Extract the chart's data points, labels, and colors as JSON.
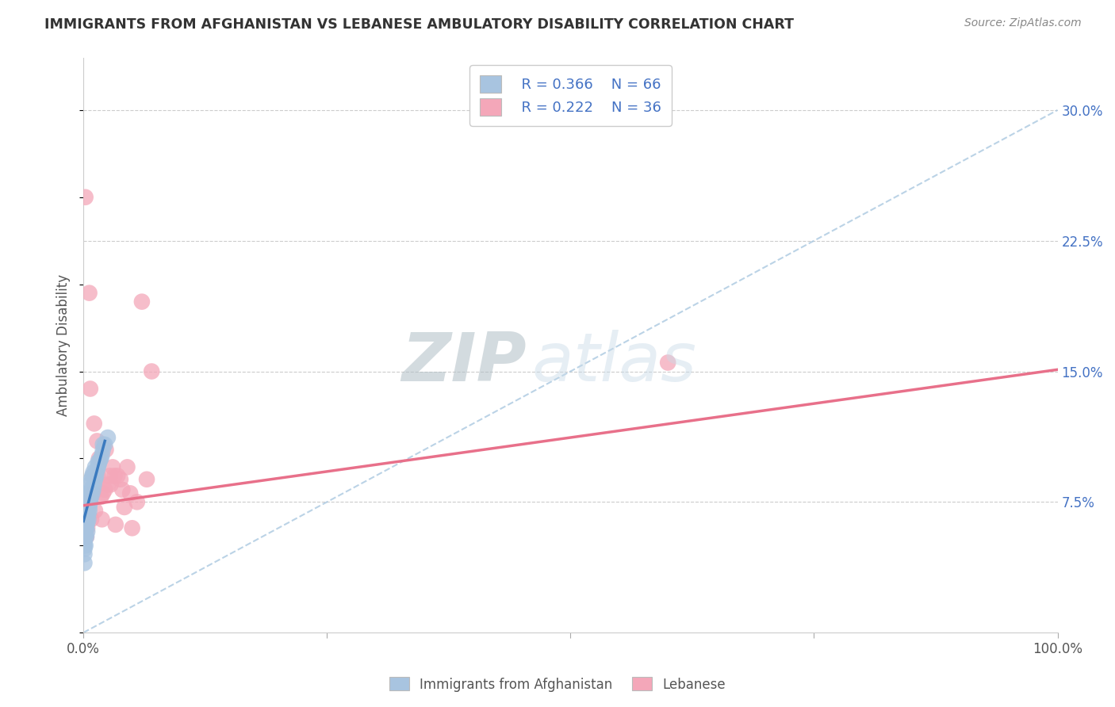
{
  "title": "IMMIGRANTS FROM AFGHANISTAN VS LEBANESE AMBULATORY DISABILITY CORRELATION CHART",
  "source": "Source: ZipAtlas.com",
  "ylabel": "Ambulatory Disability",
  "yticks": [
    0.075,
    0.15,
    0.225,
    0.3
  ],
  "ytick_labels": [
    "7.5%",
    "15.0%",
    "22.5%",
    "30.0%"
  ],
  "xlim": [
    0.0,
    1.0
  ],
  "ylim": [
    0.0,
    0.33
  ],
  "color_afg": "#a8c4e0",
  "color_leb": "#f4a7b9",
  "line_color_afg": "#3a7abf",
  "line_color_leb": "#e8708a",
  "line_color_diag": "#aac8e0",
  "watermark_zip": "ZIP",
  "watermark_atlas": "atlas",
  "legend_label1": "Immigrants from Afghanistan",
  "legend_label2": "Lebanese",
  "afg_x": [
    0.001,
    0.001,
    0.001,
    0.001,
    0.001,
    0.001,
    0.001,
    0.001,
    0.001,
    0.002,
    0.002,
    0.002,
    0.002,
    0.002,
    0.002,
    0.003,
    0.003,
    0.003,
    0.003,
    0.003,
    0.004,
    0.004,
    0.004,
    0.004,
    0.005,
    0.005,
    0.005,
    0.006,
    0.006,
    0.006,
    0.007,
    0.007,
    0.008,
    0.008,
    0.009,
    0.009,
    0.01,
    0.01,
    0.011,
    0.012,
    0.013,
    0.014,
    0.015,
    0.016,
    0.017,
    0.018,
    0.019,
    0.02,
    0.022,
    0.025,
    0.001,
    0.001,
    0.001,
    0.001,
    0.002,
    0.002,
    0.003,
    0.003,
    0.004,
    0.005,
    0.006,
    0.007,
    0.01,
    0.012,
    0.015,
    0.02
  ],
  "afg_y": [
    0.04,
    0.05,
    0.055,
    0.058,
    0.06,
    0.062,
    0.065,
    0.068,
    0.07,
    0.055,
    0.06,
    0.063,
    0.067,
    0.07,
    0.075,
    0.06,
    0.065,
    0.068,
    0.072,
    0.078,
    0.063,
    0.068,
    0.073,
    0.08,
    0.068,
    0.073,
    0.08,
    0.072,
    0.078,
    0.085,
    0.075,
    0.082,
    0.078,
    0.088,
    0.08,
    0.09,
    0.082,
    0.092,
    0.085,
    0.088,
    0.09,
    0.093,
    0.095,
    0.097,
    0.099,
    0.1,
    0.102,
    0.105,
    0.108,
    0.112,
    0.045,
    0.048,
    0.052,
    0.057,
    0.05,
    0.058,
    0.055,
    0.062,
    0.058,
    0.065,
    0.07,
    0.075,
    0.09,
    0.095,
    0.098,
    0.108
  ],
  "leb_x": [
    0.005,
    0.01,
    0.015,
    0.02,
    0.025,
    0.03,
    0.035,
    0.04,
    0.05,
    0.06,
    0.008,
    0.012,
    0.018,
    0.022,
    0.028,
    0.032,
    0.038,
    0.045,
    0.055,
    0.065,
    0.007,
    0.011,
    0.016,
    0.023,
    0.027,
    0.033,
    0.042,
    0.048,
    0.6,
    0.07,
    0.006,
    0.014,
    0.019,
    0.002,
    0.003,
    0.004
  ],
  "leb_y": [
    0.075,
    0.08,
    0.09,
    0.08,
    0.085,
    0.095,
    0.09,
    0.082,
    0.06,
    0.19,
    0.065,
    0.07,
    0.078,
    0.082,
    0.085,
    0.09,
    0.088,
    0.095,
    0.075,
    0.088,
    0.14,
    0.12,
    0.1,
    0.105,
    0.09,
    0.062,
    0.072,
    0.08,
    0.155,
    0.15,
    0.195,
    0.11,
    0.065,
    0.25,
    0.055,
    0.06
  ],
  "leb_line_x0": 0.0,
  "leb_line_y0": 0.073,
  "leb_line_x1": 1.0,
  "leb_line_y1": 0.151,
  "afg_line_x0": 0.0,
  "afg_line_y0": 0.064,
  "afg_line_x1": 0.022,
  "afg_line_y1": 0.11
}
